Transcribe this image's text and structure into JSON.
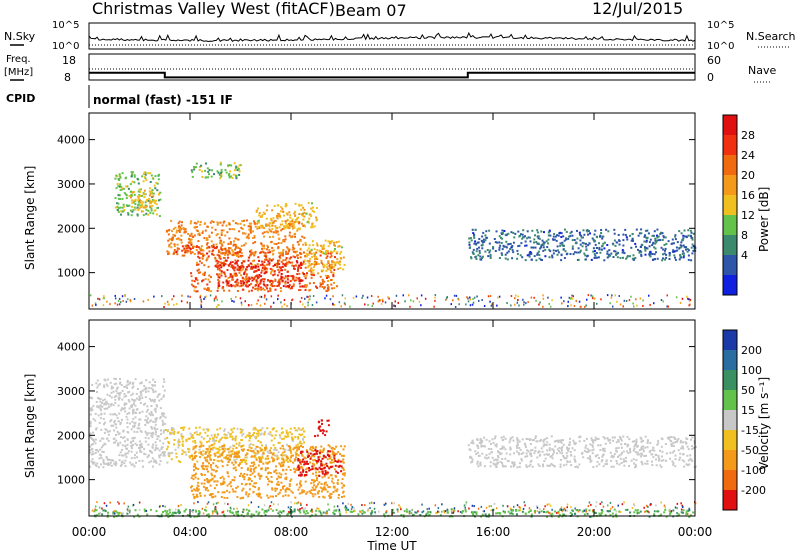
{
  "header": {
    "title": "Christmas Valley West (fitACF)",
    "beam": "Beam 07",
    "date": "12/Jul/2015"
  },
  "left_labels": {
    "nsky": "N.Sky",
    "freq_line1": "Freq.",
    "freq_line2": "[MHz]",
    "cpid": "CPID"
  },
  "right_labels": {
    "nsearch": "N.Search",
    "nave": "Nave"
  },
  "noise_axis": {
    "left_top": "10^5",
    "left_bottom": "10^0",
    "right_top": "10^5",
    "right_bottom": "10^0"
  },
  "freq_axis": {
    "left_top": "18",
    "left_bottom": "8",
    "right_top": "60",
    "right_bottom": "0"
  },
  "cpid_text": "normal (fast) -151 IF",
  "x_axis": {
    "label": "Time UT",
    "ticks": [
      "00:00",
      "04:00",
      "08:00",
      "12:00",
      "16:00",
      "20:00",
      "00:00"
    ]
  },
  "y_axis": {
    "label": "Slant Range [km]",
    "ticks": [
      "1000",
      "2000",
      "3000",
      "4000"
    ]
  },
  "power_scale": {
    "label": "Power [dB]",
    "ticks": [
      "4",
      "8",
      "12",
      "16",
      "20",
      "24",
      "28"
    ],
    "colors": [
      "#1020e0",
      "#2d55a8",
      "#3c8a6e",
      "#62c24a",
      "#f0c020",
      "#f39a1a",
      "#f06a10",
      "#f03010",
      "#e01010"
    ]
  },
  "velocity_scale": {
    "label": "Velocity [m s⁻¹]",
    "ticks": [
      "200",
      "100",
      "50",
      "15",
      "-15",
      "-50",
      "-100",
      "-200"
    ],
    "colors": [
      "#1a3aa8",
      "#2a6da0",
      "#3a9060",
      "#62c24a",
      "#c8c8c8",
      "#f0c020",
      "#f39a1a",
      "#f06a10",
      "#e01010"
    ]
  },
  "chart_data": [
    {
      "type": "line",
      "name": "noise",
      "x": [
        0,
        4,
        8,
        12,
        16,
        20,
        24
      ],
      "series": [],
      "ylim": [
        1,
        100000
      ],
      "yscale": "log"
    },
    {
      "type": "line",
      "name": "frequency",
      "x": [
        0,
        3,
        3,
        15,
        15,
        24
      ],
      "series": [
        {
          "values": [
            10.8,
            10.8,
            9.0,
            9.0,
            10.8,
            10.8
          ]
        }
      ],
      "ylim": [
        8,
        18
      ]
    },
    {
      "type": "heatmap",
      "name": "power",
      "xlabel": "Time UT",
      "ylabel": "Slant Range [km]",
      "xlim": [
        0,
        24
      ],
      "ylim": [
        180,
        4600
      ],
      "colorbar_label": "Power [dB]",
      "clim": [
        0,
        30
      ],
      "regions": [
        {
          "t0": 1.0,
          "t1": 2.8,
          "r0": 2300,
          "r1": 3300,
          "value": 12
        },
        {
          "t0": 4.0,
          "t1": 6.0,
          "r0": 3150,
          "r1": 3500,
          "value": 12
        },
        {
          "t0": 1.6,
          "t1": 2.6,
          "r0": 2400,
          "r1": 2900,
          "value": 16
        },
        {
          "t0": 3.0,
          "t1": 8.5,
          "r0": 1400,
          "r1": 2200,
          "value": 20
        },
        {
          "t0": 3.3,
          "t1": 6.0,
          "r0": 1450,
          "r1": 1650,
          "value": 24
        },
        {
          "t0": 6.5,
          "t1": 9.0,
          "r0": 2000,
          "r1": 2600,
          "value": 16
        },
        {
          "t0": 4.0,
          "t1": 9.8,
          "r0": 600,
          "r1": 1500,
          "value": 22
        },
        {
          "t0": 5.0,
          "t1": 8.5,
          "r0": 700,
          "r1": 1300,
          "value": 26
        },
        {
          "t0": 8.5,
          "t1": 10.1,
          "r0": 1000,
          "r1": 1750,
          "value": 16
        },
        {
          "t0": 15.0,
          "t1": 24.0,
          "r0": 1300,
          "r1": 2000,
          "value": 6
        }
      ]
    },
    {
      "type": "heatmap",
      "name": "velocity",
      "xlabel": "Time UT",
      "ylabel": "Slant Range [km]",
      "xlim": [
        0,
        24
      ],
      "ylim": [
        180,
        4600
      ],
      "colorbar_label": "Velocity [m s⁻¹]",
      "clim": [
        -200,
        200
      ],
      "regions": [
        {
          "t0": 0.0,
          "t1": 3.0,
          "r0": 1300,
          "r1": 3300,
          "value": 0
        },
        {
          "t0": 3.0,
          "t1": 8.5,
          "r0": 1400,
          "r1": 2200,
          "value": -30
        },
        {
          "t0": 4.0,
          "t1": 10.1,
          "r0": 600,
          "r1": 1800,
          "value": -90
        },
        {
          "t0": 8.2,
          "t1": 10.0,
          "r0": 1100,
          "r1": 1700,
          "value": -180
        },
        {
          "t0": 8.9,
          "t1": 9.5,
          "r0": 2000,
          "r1": 2400,
          "value": -200
        },
        {
          "t0": 15.0,
          "t1": 24.0,
          "r0": 1300,
          "r1": 2000,
          "value": 0
        },
        {
          "t0": 0.0,
          "t1": 24.0,
          "r0": 180,
          "r1": 350,
          "value": 60
        }
      ]
    }
  ]
}
